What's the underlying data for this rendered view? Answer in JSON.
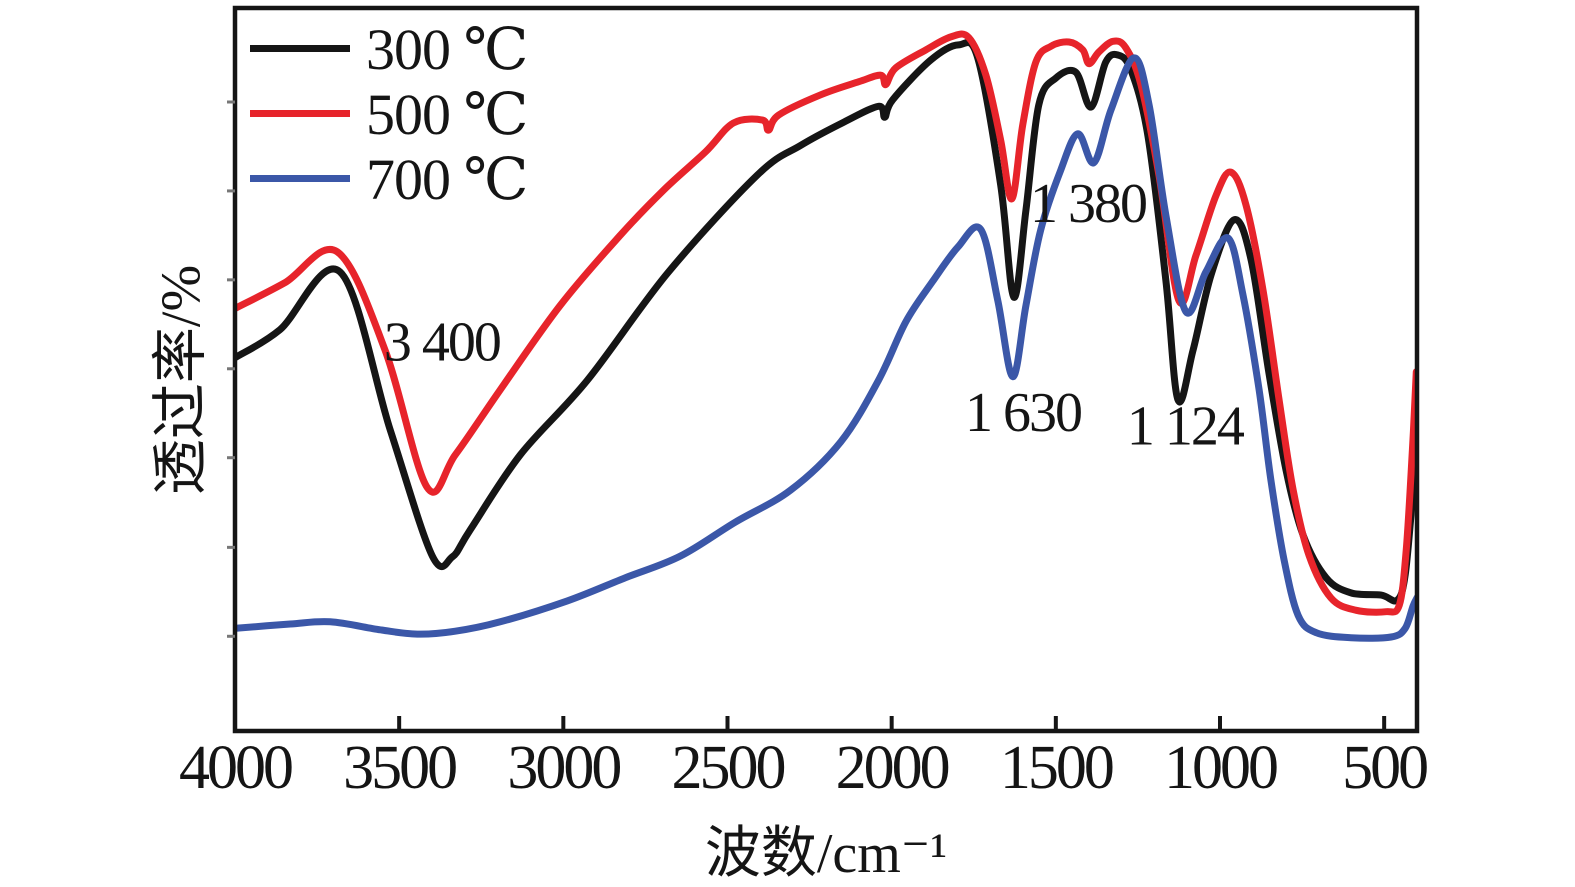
{
  "figure": {
    "background": "#ffffff",
    "border_color": "#151515"
  },
  "chart_data": {
    "type": "line",
    "title": "",
    "xlabel": "波数/cm⁻¹",
    "ylabel": "透过率/%",
    "x_range": [
      4000,
      400
    ],
    "x_axis_reversed": true,
    "x_ticks": [
      4000,
      3500,
      3000,
      2500,
      2000,
      1500,
      1000,
      500
    ],
    "y_axis": {
      "labels_shown": false,
      "minor_tick_percents": [
        87.0,
        74.7,
        62.4,
        50.1,
        37.8,
        25.4,
        13.1
      ]
    },
    "grid": false,
    "legend_position": "top-left",
    "series": [
      {
        "name": "300 ℃",
        "color": "#151515",
        "points": [
          [
            3997,
            51.7
          ],
          [
            3863,
            55.5
          ],
          [
            3680,
            63.5
          ],
          [
            3527,
            41.6
          ],
          [
            3399,
            24.2
          ],
          [
            3338,
            24.1
          ],
          [
            3284,
            27.8
          ],
          [
            3131,
            38.2
          ],
          [
            2927,
            48.5
          ],
          [
            2683,
            63.3
          ],
          [
            2409,
            76.9
          ],
          [
            2277,
            81.0
          ],
          [
            2146,
            84.2
          ],
          [
            2040,
            86.4
          ],
          [
            2021,
            84.9
          ],
          [
            1997,
            87.3
          ],
          [
            1881,
            92.8
          ],
          [
            1796,
            94.9
          ],
          [
            1738,
            93.1
          ],
          [
            1668,
            75.5
          ],
          [
            1628,
            60.0
          ],
          [
            1591,
            72.1
          ],
          [
            1552,
            86.6
          ],
          [
            1500,
            90.3
          ],
          [
            1439,
            91.1
          ],
          [
            1393,
            86.3
          ],
          [
            1348,
            92.5
          ],
          [
            1311,
            93.5
          ],
          [
            1271,
            91.4
          ],
          [
            1220,
            82.4
          ],
          [
            1165,
            62.4
          ],
          [
            1128,
            45.8
          ],
          [
            1082,
            52.7
          ],
          [
            1027,
            63.1
          ],
          [
            957,
            70.7
          ],
          [
            905,
            65.1
          ],
          [
            850,
            49.2
          ],
          [
            799,
            36.1
          ],
          [
            747,
            27.1
          ],
          [
            677,
            21.2
          ],
          [
            601,
            19.1
          ],
          [
            509,
            18.8
          ],
          [
            460,
            18.1
          ],
          [
            436,
            21.6
          ],
          [
            414,
            31.9
          ],
          [
            399,
            37.2
          ]
        ]
      },
      {
        "name": "500 ℃",
        "color": "#e7242b",
        "points": [
          [
            3997,
            58.5
          ],
          [
            3848,
            62.0
          ],
          [
            3689,
            66.3
          ],
          [
            3543,
            52.7
          ],
          [
            3415,
            33.7
          ],
          [
            3329,
            38.2
          ],
          [
            3192,
            47.2
          ],
          [
            3009,
            58.9
          ],
          [
            2826,
            68.6
          ],
          [
            2695,
            74.8
          ],
          [
            2567,
            80.1
          ],
          [
            2482,
            84.1
          ],
          [
            2393,
            84.5
          ],
          [
            2375,
            83.1
          ],
          [
            2344,
            85.2
          ],
          [
            2216,
            88.0
          ],
          [
            2100,
            89.8
          ],
          [
            2033,
            90.7
          ],
          [
            2018,
            89.4
          ],
          [
            1988,
            91.7
          ],
          [
            1896,
            94.2
          ],
          [
            1820,
            96.0
          ],
          [
            1765,
            95.9
          ],
          [
            1713,
            90.7
          ],
          [
            1668,
            81.7
          ],
          [
            1634,
            73.6
          ],
          [
            1601,
            83.8
          ],
          [
            1561,
            92.5
          ],
          [
            1515,
            94.7
          ],
          [
            1460,
            95.3
          ],
          [
            1418,
            94.2
          ],
          [
            1399,
            92.3
          ],
          [
            1369,
            93.9
          ],
          [
            1326,
            95.4
          ],
          [
            1287,
            94.5
          ],
          [
            1241,
            89.4
          ],
          [
            1186,
            76.9
          ],
          [
            1125,
            59.5
          ],
          [
            1073,
            65.8
          ],
          [
            1012,
            74.1
          ],
          [
            967,
            77.3
          ],
          [
            921,
            72.8
          ],
          [
            869,
            61.0
          ],
          [
            820,
            45.8
          ],
          [
            777,
            33.3
          ],
          [
            729,
            24.3
          ],
          [
            662,
            18.4
          ],
          [
            585,
            16.7
          ],
          [
            494,
            16.5
          ],
          [
            454,
            17.4
          ],
          [
            433,
            25.0
          ],
          [
            414,
            38.9
          ],
          [
            402,
            49.7
          ]
        ]
      },
      {
        "name": "700 ℃",
        "color": "#3b57a8",
        "points": [
          [
            3997,
            14.2
          ],
          [
            3832,
            14.8
          ],
          [
            3710,
            15.1
          ],
          [
            3558,
            14.0
          ],
          [
            3445,
            13.4
          ],
          [
            3329,
            13.8
          ],
          [
            3192,
            15.1
          ],
          [
            2988,
            18.0
          ],
          [
            2811,
            21.2
          ],
          [
            2643,
            24.2
          ],
          [
            2476,
            28.9
          ],
          [
            2308,
            33.3
          ],
          [
            2155,
            40.0
          ],
          [
            2040,
            48.5
          ],
          [
            1957,
            56.6
          ],
          [
            1875,
            62.2
          ],
          [
            1799,
            66.9
          ],
          [
            1729,
            69.4
          ],
          [
            1677,
            59.6
          ],
          [
            1631,
            49.0
          ],
          [
            1591,
            58.9
          ],
          [
            1546,
            69.3
          ],
          [
            1485,
            77.6
          ],
          [
            1433,
            82.6
          ],
          [
            1384,
            78.6
          ],
          [
            1332,
            85.9
          ],
          [
            1262,
            93.1
          ],
          [
            1216,
            86.6
          ],
          [
            1165,
            71.4
          ],
          [
            1104,
            58.0
          ],
          [
            1043,
            63.5
          ],
          [
            976,
            68.2
          ],
          [
            930,
            60.3
          ],
          [
            881,
            47.2
          ],
          [
            845,
            34.7
          ],
          [
            805,
            23.7
          ],
          [
            762,
            16.0
          ],
          [
            707,
            13.6
          ],
          [
            601,
            12.9
          ],
          [
            479,
            13.0
          ],
          [
            436,
            14.2
          ],
          [
            412,
            17.3
          ],
          [
            399,
            18.5
          ]
        ]
      }
    ],
    "annotations": [
      {
        "label": "3 400",
        "wn": 3370,
        "t": 53.0
      },
      {
        "label": "1 630",
        "wn": 1600,
        "t": 43.3
      },
      {
        "label": "1 380",
        "wn": 1402,
        "t": 72.2
      },
      {
        "label": "1 124",
        "wn": 1107,
        "t": 41.4
      }
    ]
  }
}
